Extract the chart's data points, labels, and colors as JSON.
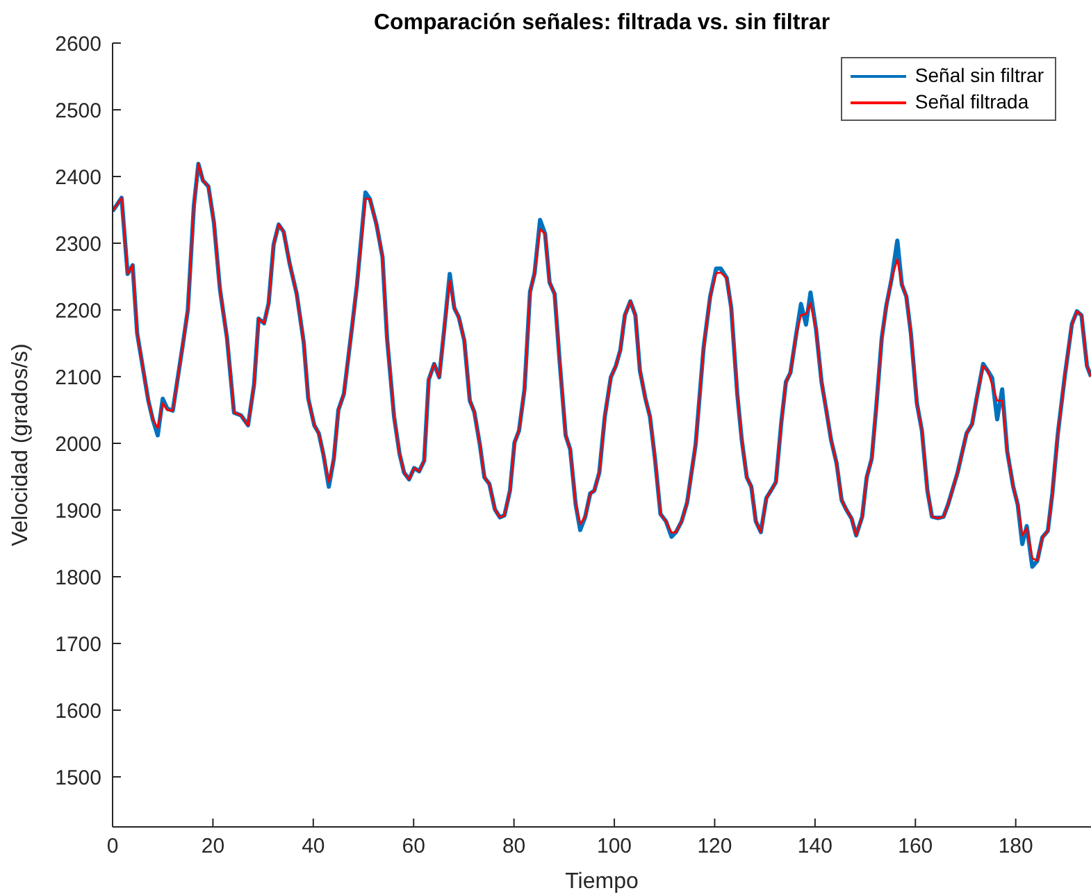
{
  "chart_data": {
    "type": "line",
    "title": "Comparación señales: filtrada vs. sin filtrar",
    "xlabel": "Tiempo",
    "ylabel": "Velocidad (grados/s)",
    "xlim": [
      0,
      195
    ],
    "xticks": [
      0,
      20,
      40,
      60,
      80,
      100,
      120,
      140,
      160,
      180
    ],
    "ylim": [
      1425,
      2600
    ],
    "yticks": [
      1500,
      1600,
      1700,
      1800,
      1900,
      2000,
      2100,
      2200,
      2300,
      2400,
      2500,
      2600
    ],
    "grid": false,
    "legend": "top right",
    "marker": "none",
    "line_style": "solid",
    "x": [
      0,
      1.8,
      3,
      4,
      4.9,
      7.1,
      8,
      9,
      10,
      10.9,
      12,
      14,
      15,
      16.2,
      17.1,
      18,
      19.1,
      20.2,
      21.4,
      22.8,
      24.2,
      25.6,
      27,
      28.2,
      29.1,
      30.2,
      31.1,
      32.1,
      33.1,
      34.1,
      35.3,
      36.7,
      38.1,
      39,
      40.2,
      41.1,
      42,
      43.1,
      44.1,
      45,
      46.1,
      47.8,
      48.7,
      50.4,
      51.3,
      52.6,
      53.8,
      54.7,
      56.1,
      57.2,
      58.1,
      59.1,
      60.1,
      61.1,
      62.1,
      63,
      64.1,
      65.1,
      66.1,
      67.2,
      68.1,
      69,
      70.1,
      71.2,
      72.1,
      73.2,
      74.1,
      75.1,
      76.2,
      77.2,
      78.1,
      79.2,
      80.1,
      81,
      82.1,
      83.2,
      84.1,
      85.2,
      86.2,
      87.1,
      88.1,
      89.1,
      90.3,
      91.2,
      92.3,
      93.2,
      94.2,
      95.2,
      96,
      97,
      98.1,
      99.3,
      100.3,
      101.2,
      102.1,
      103.2,
      104.2,
      105.1,
      106.2,
      107.1,
      108.1,
      109.2,
      110.3,
      111.4,
      112.3,
      113.4,
      114.5,
      116.2,
      117.8,
      119.1,
      120.3,
      121.2,
      122.4,
      123.3,
      124.5,
      125.4,
      126.4,
      127.3,
      128.2,
      129.2,
      130.3,
      131.2,
      132.2,
      133.3,
      134.2,
      135.1,
      136.2,
      137.2,
      138.2,
      139.1,
      140.2,
      141.3,
      142.3,
      143.2,
      144.3,
      145.3,
      146.2,
      147.3,
      148.2,
      149.4,
      150.3,
      151.3,
      152.2,
      153.3,
      154.2,
      155.3,
      156.4,
      157.3,
      158.2,
      159.1,
      160.3,
      161.3,
      162.4,
      163.3,
      164.5,
      165.6,
      166.5,
      168.4,
      170.2,
      171.3,
      172.2,
      173.5,
      174.4,
      175.3,
      176.3,
      177.3,
      178.3,
      179.5,
      180.4,
      181.3,
      182.2,
      183.3,
      184.3,
      185.3,
      186.4,
      187.3,
      188.4,
      189.8,
      191.2,
      192.2,
      193.1,
      194.2,
      195
    ],
    "series": [
      {
        "name": "Señal sin filtrar",
        "color": "#0072bd",
        "values": [
          2348,
          2368,
          2254,
          2267,
          2165,
          2065,
          2036,
          2012,
          2067,
          2052,
          2049,
          2148,
          2200,
          2356,
          2419,
          2394,
          2385,
          2331,
          2231,
          2158,
          2046,
          2042,
          2027,
          2088,
          2187,
          2180,
          2210,
          2298,
          2328,
          2317,
          2269,
          2224,
          2151,
          2067,
          2027,
          2015,
          1984,
          1935,
          1977,
          2050,
          2074,
          2179,
          2237,
          2376,
          2366,
          2328,
          2279,
          2158,
          2040,
          1984,
          1956,
          1946,
          1963,
          1958,
          1974,
          2095,
          2119,
          2099,
          2171,
          2254,
          2203,
          2189,
          2154,
          2064,
          2047,
          1998,
          1949,
          1939,
          1901,
          1889,
          1892,
          1929,
          2001,
          2019,
          2081,
          2227,
          2255,
          2335,
          2314,
          2241,
          2224,
          2123,
          2012,
          1991,
          1908,
          1870,
          1890,
          1925,
          1929,
          1956,
          2040,
          2099,
          2116,
          2140,
          2192,
          2213,
          2192,
          2109,
          2067,
          2040,
          1977,
          1894,
          1883,
          1860,
          1867,
          1883,
          1911,
          1998,
          2144,
          2220,
          2262,
          2262,
          2248,
          2203,
          2074,
          2005,
          1949,
          1935,
          1883,
          1867,
          1918,
          1929,
          1942,
          2033,
          2092,
          2106,
          2161,
          2209,
          2178,
          2226,
          2171,
          2092,
          2047,
          2005,
          1970,
          1915,
          1901,
          1887,
          1862,
          1890,
          1949,
          1977,
          2054,
          2158,
          2206,
          2248,
          2304,
          2238,
          2220,
          2165,
          2060,
          2019,
          1929,
          1890,
          1888,
          1890,
          1908,
          1956,
          2015,
          2029,
          2067,
          2119,
          2109,
          2098,
          2036,
          2081,
          1988,
          1935,
          1908,
          1849,
          1876,
          1815,
          1824,
          1859,
          1869,
          1925,
          2015,
          2102,
          2179,
          2198,
          2192,
          2116,
          2100
        ]
      },
      {
        "name": "Señal filtrada",
        "color": "#ff0000",
        "values": [
          2348,
          2368,
          2254,
          2267,
          2165,
          2065,
          2036,
          2023,
          2060,
          2050,
          2049,
          2148,
          2200,
          2356,
          2419,
          2394,
          2385,
          2331,
          2231,
          2158,
          2046,
          2042,
          2027,
          2088,
          2187,
          2180,
          2210,
          2298,
          2328,
          2317,
          2269,
          2224,
          2151,
          2067,
          2027,
          2015,
          1984,
          1942,
          1977,
          2050,
          2074,
          2179,
          2237,
          2367,
          2366,
          2328,
          2279,
          2158,
          2040,
          1984,
          1956,
          1946,
          1963,
          1958,
          1974,
          2095,
          2119,
          2099,
          2171,
          2244,
          2203,
          2189,
          2154,
          2064,
          2047,
          1998,
          1949,
          1939,
          1901,
          1889,
          1892,
          1929,
          2001,
          2019,
          2081,
          2227,
          2255,
          2321,
          2314,
          2241,
          2224,
          2123,
          2012,
          1991,
          1908,
          1879,
          1890,
          1925,
          1929,
          1956,
          2040,
          2099,
          2116,
          2140,
          2192,
          2213,
          2192,
          2109,
          2067,
          2040,
          1977,
          1894,
          1883,
          1866,
          1867,
          1883,
          1911,
          1998,
          2144,
          2220,
          2255,
          2256,
          2248,
          2203,
          2074,
          2005,
          1949,
          1935,
          1883,
          1867,
          1918,
          1929,
          1942,
          2033,
          2092,
          2106,
          2161,
          2192,
          2194,
          2210,
          2171,
          2092,
          2047,
          2005,
          1970,
          1915,
          1901,
          1887,
          1862,
          1890,
          1949,
          1977,
          2054,
          2158,
          2206,
          2248,
          2276,
          2238,
          2220,
          2165,
          2060,
          2019,
          1929,
          1890,
          1888,
          1890,
          1908,
          1956,
          2015,
          2029,
          2067,
          2116,
          2109,
          2088,
          2064,
          2064,
          1988,
          1935,
          1908,
          1862,
          1873,
          1828,
          1824,
          1859,
          1869,
          1925,
          2015,
          2102,
          2179,
          2198,
          2192,
          2116,
          2100
        ]
      }
    ]
  }
}
